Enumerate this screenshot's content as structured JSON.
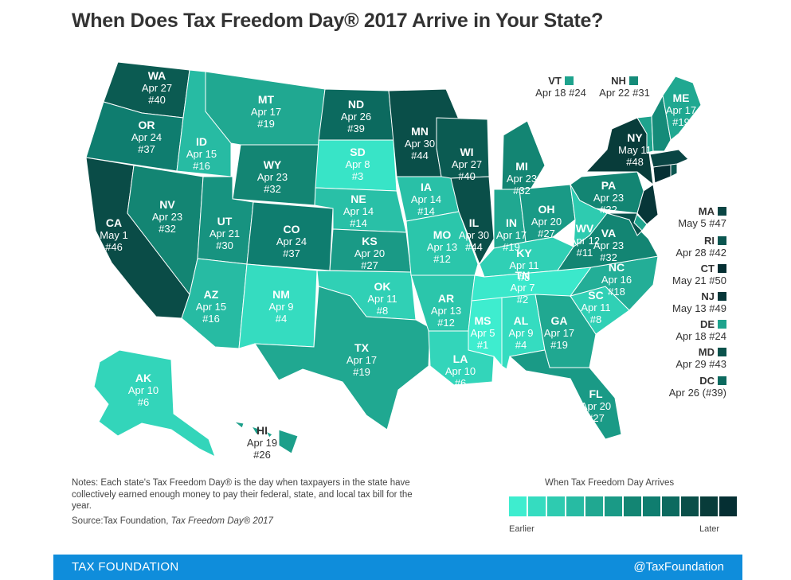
{
  "title": "When Does Tax Freedom Day® 2017 Arrive in Your State?",
  "states": {
    "WA": {
      "abbr": "WA",
      "date": "Apr 27",
      "rank": "#40",
      "color": "#0b5b52"
    },
    "OR": {
      "abbr": "OR",
      "date": "Apr 24",
      "rank": "#37",
      "color": "#0f7d6f"
    },
    "CA": {
      "abbr": "CA",
      "date": "May 1",
      "rank": "#46",
      "color": "#0a4c47"
    },
    "ID": {
      "abbr": "ID",
      "date": "Apr 15",
      "rank": "#16",
      "color": "#27bba3"
    },
    "NV": {
      "abbr": "NV",
      "date": "Apr 23",
      "rank": "#32",
      "color": "#138573"
    },
    "MT": {
      "abbr": "MT",
      "date": "Apr 17",
      "rank": "#19",
      "color": "#20a891"
    },
    "WY": {
      "abbr": "WY",
      "date": "Apr 23",
      "rank": "#32",
      "color": "#138573"
    },
    "UT": {
      "abbr": "UT",
      "date": "Apr 21",
      "rank": "#30",
      "color": "#179380"
    },
    "CO": {
      "abbr": "CO",
      "date": "Apr 24",
      "rank": "#37",
      "color": "#0f7d6f"
    },
    "AZ": {
      "abbr": "AZ",
      "date": "Apr 15",
      "rank": "#16",
      "color": "#27bba3"
    },
    "NM": {
      "abbr": "NM",
      "date": "Apr 9",
      "rank": "#4",
      "color": "#35dcc0"
    },
    "ND": {
      "abbr": "ND",
      "date": "Apr 26",
      "rank": "#39",
      "color": "#0c6a5f"
    },
    "SD": {
      "abbr": "SD",
      "date": "Apr 8",
      "rank": "#3",
      "color": "#38e4c7"
    },
    "NE": {
      "abbr": "NE",
      "date": "Apr 14",
      "rank": "#14",
      "color": "#29c0a7"
    },
    "KS": {
      "abbr": "KS",
      "date": "Apr 20",
      "rank": "#27",
      "color": "#1a9a86"
    },
    "OK": {
      "abbr": "OK",
      "date": "Apr 11",
      "rank": "#8",
      "color": "#30d0b5"
    },
    "TX": {
      "abbr": "TX",
      "date": "Apr 17",
      "rank": "#19",
      "color": "#20a891"
    },
    "MN": {
      "abbr": "MN",
      "date": "Apr 30",
      "rank": "#44",
      "color": "#0a4f49"
    },
    "IA": {
      "abbr": "IA",
      "date": "Apr 14",
      "rank": "#14",
      "color": "#29c0a7"
    },
    "MO": {
      "abbr": "MO",
      "date": "Apr 13",
      "rank": "#12",
      "color": "#2bc6ab"
    },
    "AR": {
      "abbr": "AR",
      "date": "Apr 13",
      "rank": "#12",
      "color": "#2bc6ab"
    },
    "LA": {
      "abbr": "LA",
      "date": "Apr 10",
      "rank": "#6",
      "color": "#33d5ba"
    },
    "WI": {
      "abbr": "WI",
      "date": "Apr 27",
      "rank": "#40",
      "color": "#0b5b52"
    },
    "IL": {
      "abbr": "IL",
      "date": "Apr 30",
      "rank": "#44",
      "color": "#0a4f49"
    },
    "MI": {
      "abbr": "MI",
      "date": "Apr 23",
      "rank": "#32",
      "color": "#138573"
    },
    "IN": {
      "abbr": "IN",
      "date": "Apr 17",
      "rank": "#19",
      "color": "#20a891"
    },
    "OH": {
      "abbr": "OH",
      "date": "Apr 20",
      "rank": "#27",
      "color": "#1a9a86"
    },
    "KY": {
      "abbr": "KY",
      "date": "Apr 11",
      "rank": "#8",
      "color": "#30d0b5"
    },
    "TN": {
      "abbr": "TN",
      "date": "Apr 7",
      "rank": "#2",
      "color": "#3be8cb"
    },
    "MS": {
      "abbr": "MS",
      "date": "Apr 5",
      "rank": "#1",
      "color": "#3eedcf"
    },
    "AL": {
      "abbr": "AL",
      "date": "Apr 9",
      "rank": "#4",
      "color": "#35dcc0"
    },
    "GA": {
      "abbr": "GA",
      "date": "Apr 17",
      "rank": "#19",
      "color": "#20a891"
    },
    "FL": {
      "abbr": "FL",
      "date": "Apr 20",
      "rank": "#27",
      "color": "#1a9a86"
    },
    "SC": {
      "abbr": "SC",
      "date": "Apr 11",
      "rank": "#8",
      "color": "#30d0b5"
    },
    "NC": {
      "abbr": "NC",
      "date": "Apr 16",
      "rank": "#18",
      "color": "#23ae97"
    },
    "VA": {
      "abbr": "VA",
      "date": "Apr 23",
      "rank": "#32",
      "color": "#138573"
    },
    "WV": {
      "abbr": "WV",
      "date": "Apr 12",
      "rank": "#11",
      "color": "#2ecbb0"
    },
    "PA": {
      "abbr": "PA",
      "date": "Apr 23",
      "rank": "#32",
      "color": "#138573"
    },
    "NY": {
      "abbr": "NY",
      "date": "May 11",
      "rank": "#48",
      "color": "#083c3a"
    },
    "ME": {
      "abbr": "ME",
      "date": "Apr 17",
      "rank": "#19",
      "color": "#20a891"
    },
    "AK": {
      "abbr": "AK",
      "date": "Apr 10",
      "rank": "#6",
      "color": "#33d5ba"
    },
    "HI": {
      "abbr": "HI",
      "date": "Apr 19",
      "rank": "#26",
      "color": "#1c9f8a"
    },
    "VT": {
      "abbr": "VT",
      "date": "Apr 18",
      "rank": "#24",
      "color": "#1ea38d"
    },
    "NH": {
      "abbr": "NH",
      "date": "Apr 22",
      "rank": "#31",
      "color": "#158b79"
    },
    "MA": {
      "abbr": "MA",
      "date": "May 5",
      "rank": "#47",
      "color": "#0a4544"
    },
    "RI": {
      "abbr": "RI",
      "date": "Apr 28",
      "rank": "#42",
      "color": "#0b5650"
    },
    "CT": {
      "abbr": "CT",
      "date": "May 21",
      "rank": "#50",
      "color": "#052f33"
    },
    "NJ": {
      "abbr": "NJ",
      "date": "May 13",
      "rank": "#49",
      "color": "#073638"
    },
    "DE": {
      "abbr": "DE",
      "date": "Apr 18",
      "rank": "#24",
      "color": "#1ea38d"
    },
    "MD": {
      "abbr": "MD",
      "date": "Apr 29",
      "rank": "#43",
      "color": "#0a524c"
    },
    "DC": {
      "abbr": "DC",
      "date": "Apr 26 (#39)",
      "rank": "",
      "color": "#0c6a5f"
    }
  },
  "notes": {
    "text": "Notes: Each state's Tax Freedom Day® is the day when taxpayers in the state have collectively earned enough money to pay their federal, state, and local tax bill for the year.",
    "source_prefix": "Source:Tax Foundation, ",
    "source_italic": "Tax Freedom Day® 2017"
  },
  "legend": {
    "title": "When Tax Freedom Day Arrives",
    "earlier": "Earlier",
    "later": "Later",
    "colors": [
      "#3eedcf",
      "#35dcc0",
      "#2ecbb0",
      "#27bba3",
      "#20a891",
      "#1a9a86",
      "#138573",
      "#0f7d6f",
      "#0c6a5f",
      "#0a4f49",
      "#083c3a",
      "#052f33"
    ]
  },
  "footer": {
    "left": "TAX FOUNDATION",
    "right": "@TaxFoundation"
  }
}
